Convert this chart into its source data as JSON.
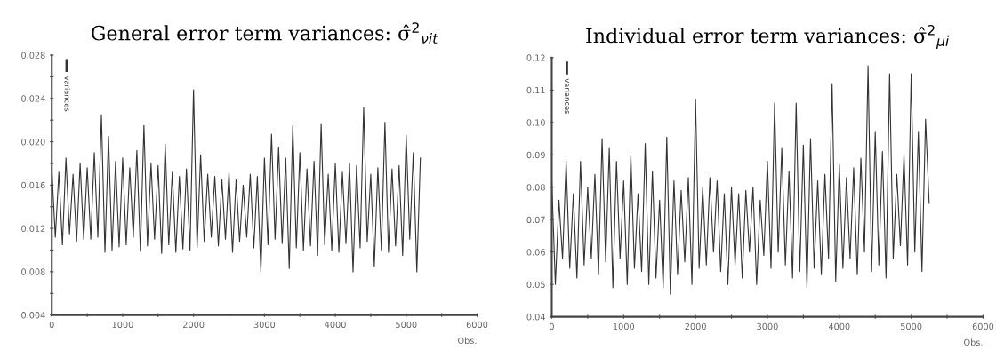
{
  "chart_data": [
    {
      "type": "line",
      "title": "General error term variances: σ̂$^{2}$$_{νit}$",
      "xlabel": "Obs.",
      "legend": "top left",
      "grid": false,
      "xlim": [
        0,
        6000
      ],
      "xticks": [
        0,
        {
          "value": 500,
          "label": null
        },
        1000,
        {
          "value": 1500,
          "label": null
        },
        2000,
        {
          "value": 2500,
          "label": null
        },
        3000,
        {
          "value": 3500,
          "label": null
        },
        4000,
        {
          "value": 4500,
          "label": null
        },
        5000,
        {
          "value": 5500,
          "label": null
        },
        6000
      ],
      "ylim": [
        0.004,
        0.028
      ],
      "yticks": [
        0.004,
        {
          "value": 0.006,
          "label": null
        },
        0.008,
        {
          "value": 0.01,
          "label": null
        },
        0.012,
        {
          "value": 0.014,
          "label": null
        },
        0.016,
        {
          "value": 0.018,
          "label": null
        },
        {
          "value": 0.02,
          "label": "0.020"
        },
        {
          "value": 0.022,
          "label": null
        },
        0.024,
        {
          "value": 0.026,
          "label": null
        },
        0.028
      ],
      "series": [
        {
          "name": "variances",
          "color": "#333333",
          "x": [
            0,
            50,
            100,
            150,
            200,
            250,
            300,
            350,
            400,
            450,
            500,
            550,
            600,
            650,
            700,
            750,
            800,
            850,
            900,
            950,
            1000,
            1050,
            1100,
            1150,
            1200,
            1250,
            1300,
            1350,
            1400,
            1450,
            1500,
            1550,
            1600,
            1650,
            1700,
            1750,
            1800,
            1850,
            1900,
            1950,
            2000,
            2050,
            2100,
            2150,
            2200,
            2250,
            2300,
            2350,
            2400,
            2450,
            2500,
            2550,
            2600,
            2650,
            2700,
            2750,
            2800,
            2850,
            2900,
            2950,
            3000,
            3050,
            3100,
            3150,
            3200,
            3250,
            3300,
            3350,
            3400,
            3450,
            3500,
            3550,
            3600,
            3650,
            3700,
            3750,
            3800,
            3850,
            3900,
            3950,
            4000,
            4050,
            4100,
            4150,
            4200,
            4250,
            4300,
            4350,
            4400,
            4450,
            4500,
            4550,
            4600,
            4650,
            4700,
            4750,
            4800,
            4850,
            4900,
            4950,
            5000,
            5050,
            5100,
            5150,
            5200
          ],
          "values": [
            0.0175,
            0.0112,
            0.0172,
            0.0105,
            0.0185,
            0.0115,
            0.017,
            0.0108,
            0.018,
            0.011,
            0.0176,
            0.011,
            0.019,
            0.0112,
            0.0225,
            0.0098,
            0.0205,
            0.01,
            0.0182,
            0.0103,
            0.0185,
            0.0105,
            0.0176,
            0.0112,
            0.0192,
            0.0099,
            0.0215,
            0.0104,
            0.018,
            0.011,
            0.0178,
            0.0097,
            0.0198,
            0.0105,
            0.0172,
            0.0098,
            0.0168,
            0.0101,
            0.0175,
            0.01,
            0.0248,
            0.0102,
            0.0188,
            0.0108,
            0.017,
            0.0112,
            0.0168,
            0.0104,
            0.0165,
            0.011,
            0.0172,
            0.0098,
            0.0165,
            0.0108,
            0.016,
            0.0112,
            0.017,
            0.0102,
            0.0168,
            0.008,
            0.0185,
            0.0105,
            0.0207,
            0.011,
            0.0195,
            0.0106,
            0.0185,
            0.0083,
            0.0215,
            0.0102,
            0.019,
            0.01,
            0.0175,
            0.0104,
            0.0182,
            0.0095,
            0.0216,
            0.0105,
            0.017,
            0.01,
            0.018,
            0.0098,
            0.0172,
            0.0106,
            0.018,
            0.008,
            0.0178,
            0.0102,
            0.0232,
            0.0108,
            0.017,
            0.0085,
            0.0176,
            0.01,
            0.0218,
            0.0098,
            0.0175,
            0.0104,
            0.0178,
            0.0095,
            0.0206,
            0.011,
            0.019,
            0.008,
            0.0185
          ]
        }
      ]
    },
    {
      "type": "line",
      "title": "Individual error term variances: σ̂$^{2}$$_{μi}$",
      "xlabel": "Obs.",
      "legend": "top left",
      "grid": false,
      "xlim": [
        0,
        6000
      ],
      "xticks": [
        0,
        {
          "value": 500,
          "label": null
        },
        1000,
        {
          "value": 1500,
          "label": null
        },
        2000,
        {
          "value": 2500,
          "label": null
        },
        3000,
        {
          "value": 3500,
          "label": null
        },
        4000,
        {
          "value": 4500,
          "label": null
        },
        5000,
        {
          "value": 5500,
          "label": null
        },
        6000
      ],
      "ylim": [
        0.04,
        0.12
      ],
      "yticks": [
        0.04,
        0.05,
        0.06,
        0.07,
        0.08,
        0.09,
        {
          "value": 0.1,
          "label": "0.10"
        },
        0.11,
        0.12
      ],
      "series": [
        {
          "name": "variances",
          "color": "#333333",
          "x": [
            0,
            50,
            100,
            150,
            200,
            250,
            300,
            350,
            400,
            450,
            500,
            550,
            600,
            650,
            700,
            750,
            800,
            850,
            900,
            950,
            1000,
            1050,
            1100,
            1150,
            1200,
            1250,
            1300,
            1350,
            1400,
            1450,
            1500,
            1550,
            1600,
            1650,
            1700,
            1750,
            1800,
            1850,
            1900,
            1950,
            2000,
            2050,
            2100,
            2150,
            2200,
            2250,
            2300,
            2350,
            2400,
            2450,
            2500,
            2550,
            2600,
            2650,
            2700,
            2750,
            2800,
            2850,
            2900,
            2950,
            3000,
            3050,
            3100,
            3150,
            3200,
            3250,
            3300,
            3350,
            3400,
            3450,
            3500,
            3550,
            3600,
            3650,
            3700,
            3750,
            3800,
            3850,
            3900,
            3950,
            4000,
            4050,
            4100,
            4150,
            4200,
            4250,
            4300,
            4350,
            4400,
            4450,
            4500,
            4550,
            4600,
            4650,
            4700,
            4750,
            4800,
            4850,
            4900,
            4950,
            5000,
            5050,
            5100,
            5150,
            5200,
            5250
          ],
          "values": [
            0.082,
            0.05,
            0.076,
            0.058,
            0.088,
            0.055,
            0.078,
            0.052,
            0.088,
            0.056,
            0.08,
            0.058,
            0.084,
            0.053,
            0.095,
            0.057,
            0.092,
            0.049,
            0.088,
            0.058,
            0.082,
            0.05,
            0.09,
            0.055,
            0.078,
            0.054,
            0.0935,
            0.05,
            0.085,
            0.052,
            0.076,
            0.049,
            0.0955,
            0.047,
            0.082,
            0.053,
            0.079,
            0.057,
            0.083,
            0.05,
            0.107,
            0.055,
            0.08,
            0.056,
            0.083,
            0.06,
            0.082,
            0.054,
            0.078,
            0.05,
            0.08,
            0.056,
            0.078,
            0.052,
            0.079,
            0.06,
            0.08,
            0.05,
            0.076,
            0.059,
            0.088,
            0.055,
            0.106,
            0.06,
            0.092,
            0.056,
            0.085,
            0.052,
            0.106,
            0.054,
            0.093,
            0.049,
            0.095,
            0.055,
            0.082,
            0.053,
            0.084,
            0.058,
            0.112,
            0.051,
            0.087,
            0.055,
            0.083,
            0.058,
            0.086,
            0.053,
            0.089,
            0.06,
            0.1175,
            0.054,
            0.097,
            0.056,
            0.091,
            0.052,
            0.115,
            0.058,
            0.084,
            0.062,
            0.09,
            0.056,
            0.115,
            0.06,
            0.097,
            0.054,
            0.101,
            0.075
          ]
        }
      ]
    }
  ]
}
